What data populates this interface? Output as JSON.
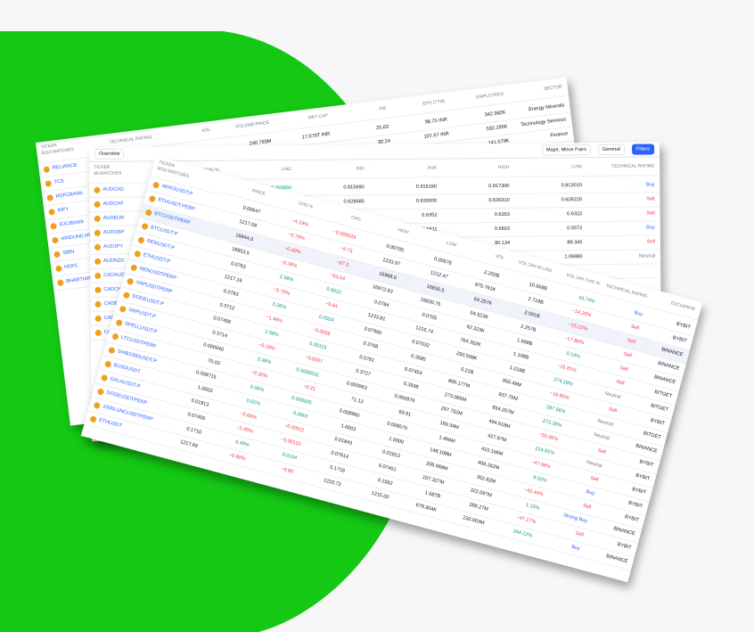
{
  "stock_table": {
    "header": "TICKER",
    "matches": "5010 MATCHES",
    "columns": [
      "TECHNICAL RATING",
      "VOL",
      "VOLUME*PRICE",
      "MKT CAP",
      "P/E",
      "EPS (TTM)",
      "EMPLOYEES",
      "SECTOR"
    ],
    "rows": [
      {
        "ticker": "RELIANCE",
        "cells": [
          null,
          "95.382K",
          "240.793M",
          "17.079T INR",
          "25.63",
          "98.75 INR",
          "342.982K",
          "Energy Minerals"
        ]
      },
      {
        "ticker": "TCS",
        "cells": [
          null,
          "60.181K",
          null,
          "11.913T INR",
          "30.24",
          "107.67 INR",
          "592.195K",
          "Technology Services"
        ]
      },
      {
        "ticker": "HDFCBANK",
        "cells": [
          null,
          null,
          null,
          null,
          "21.76",
          "75.16 INR",
          "141.579K",
          "Finance"
        ]
      },
      {
        "ticker": "INFY",
        "cells": [
          null,
          null,
          null,
          null,
          null,
          null,
          "339.485K",
          "Technology Services"
        ]
      },
      {
        "ticker": "ICICIBANK",
        "cells": [
          null,
          null,
          null,
          null,
          null,
          null,
          null,
          null
        ]
      },
      {
        "ticker": "HINDUNILVR",
        "cells": [
          null,
          null,
          null,
          null,
          null,
          null,
          null,
          null
        ]
      },
      {
        "ticker": "SBIN",
        "cells": [
          null,
          null,
          null,
          null,
          null,
          null,
          null,
          null
        ]
      },
      {
        "ticker": "HDFC",
        "cells": [
          null,
          null,
          null,
          null,
          null,
          null,
          null,
          null
        ]
      },
      {
        "ticker": "BHARTIARTL",
        "cells": [
          null,
          null,
          null,
          null,
          null,
          null,
          null,
          null
        ]
      }
    ]
  },
  "forex_table": {
    "toolbar": {
      "view": "Overview",
      "pairs": "Major, Minor Pairs",
      "group": "General",
      "filters": "Filters"
    },
    "header": "TICKER",
    "matches": "49 MATCHES",
    "columns": [
      "CHG %",
      "CHG",
      "BID",
      "ASK",
      "HIGH",
      "LOW",
      "TECHNICAL RATING"
    ],
    "rows": [
      {
        "ticker": "AUDCAD",
        "cells": [
          null,
          "0.003950",
          "0.915690",
          "0.916160",
          "0.917300",
          "0.913010",
          "Buy"
        ]
      },
      {
        "ticker": "AUDCHF",
        "cells": [
          null,
          null,
          "0.628685",
          "0.630000",
          "0.630310",
          "0.626220",
          "Sell"
        ]
      },
      {
        "ticker": "AUDEUR",
        "cells": [
          null,
          null,
          "0.6350",
          "0.6352",
          "0.6353",
          "0.6322",
          "Sell"
        ]
      },
      {
        "ticker": "AUDGBP",
        "cells": [
          null,
          null,
          null,
          "0.5611",
          "0.5603",
          "0.5572",
          "Buy"
        ]
      },
      {
        "ticker": "AUDJPY",
        "cells": [
          null,
          null,
          null,
          null,
          "90.134",
          "89.345",
          "Sell"
        ]
      },
      {
        "ticker": "AUDNZD",
        "cells": [
          null,
          null,
          null,
          null,
          null,
          "1.06980",
          "Neutral"
        ]
      },
      {
        "ticker": "CADAUD",
        "cells": [
          null,
          null,
          null,
          null,
          null,
          null,
          null
        ]
      },
      {
        "ticker": "CADCHF",
        "cells": [
          null,
          null,
          null,
          null,
          null,
          null,
          null
        ]
      },
      {
        "ticker": "CADEUR",
        "cells": [
          null,
          null,
          null,
          null,
          null,
          null,
          null
        ]
      },
      {
        "ticker": "CADGBP",
        "cells": [
          null,
          null,
          null,
          null,
          null,
          null,
          null
        ]
      },
      {
        "ticker": "CADJPY",
        "cells": [
          null,
          null,
          null,
          null,
          null,
          null,
          null
        ]
      }
    ]
  },
  "crypto_table": {
    "header": "TICKER",
    "matches": "5010 MATCHES",
    "columns": [
      "PRICE",
      "CHG %",
      "CHG",
      "HIGH",
      "LOW",
      "VOL",
      "VOL 24H IN USD",
      "VOL 24H CHG %",
      "TECHNICAL RATING",
      "EXCHANGE"
    ],
    "rows": [
      {
        "ticker": "AKROUSDT.P",
        "cells": [
          "0.00647",
          "−4.19%",
          "−0.000016",
          "0.00705",
          "0.00578",
          "2.202B",
          "10.568B",
          "43.74%",
          "Buy",
          "BYBIT"
        ]
      },
      {
        "ticker": "ETHUSDT.PERP",
        "cells": [
          "1217.08",
          "−0.79%",
          "−9.73",
          "1233.97",
          "1212.47",
          "875.761K",
          "2.718B",
          "−14.20%",
          "Sell",
          "BYBIT"
        ]
      },
      {
        "ticker": "BTCUSDTPERP",
        "cells": [
          "16844.0",
          "−0.40%",
          "−67.3",
          "16968.0",
          "16830.5",
          "64.257K",
          "2.591B",
          "−15.23%",
          "Sell",
          "BINANCE"
        ]
      },
      {
        "ticker": "BTCUSDT.P",
        "cells": [
          "16853.5",
          "−0.38%",
          "−63.64",
          "16972.83",
          "16830.75",
          "54.523K",
          "2.257B",
          "−17.80%",
          "Sell",
          "BINANCE"
        ]
      },
      {
        "ticker": "RENUSDT.P",
        "cells": [
          "0.0763",
          "2.98%",
          "0.0022",
          "0.0784",
          "0.0705",
          "42.323K",
          "1.698B",
          "0.14%",
          "Sell",
          "BINANCE"
        ]
      },
      {
        "ticker": "ETHUSDT.P",
        "cells": [
          "1217.16",
          "−0.79%",
          "−9.64",
          "1233.81",
          "1215.74",
          "764.352K",
          "1.108B",
          "−15.81%",
          "Sell",
          "BITGET"
        ]
      },
      {
        "ticker": "RENUSDTPERP",
        "cells": [
          "0.0763",
          "3.26%",
          "0.0024",
          "0.07900",
          "0.07032",
          "250.508K",
          "1.018B",
          "274.18%",
          "Neutral",
          "BITGET"
        ]
      },
      {
        "ticker": "XRPUSDTPERP",
        "cells": [
          "0.3712",
          "−1.48%",
          "−0.0056",
          "0.3768",
          "0.3585",
          "5.21B",
          "950.49M",
          "−18.85%",
          "Sell",
          "BYBIT"
        ]
      },
      {
        "ticker": "DOGEUSDT.P",
        "cells": [
          "0.07456",
          "1.56%",
          "0.00115",
          "0.0761",
          "0.07454",
          "896.177M",
          "837.75M",
          "287.56%",
          "Neutral",
          "BITGET"
        ]
      },
      {
        "ticker": "XRPUSDT.P",
        "cells": [
          "0.3714",
          "−0.18%",
          "−0.0007",
          "0.3727",
          "0.3598",
          "273.085M",
          "654.257M",
          "273.38%",
          "Neutral",
          "BINANCE"
        ]
      },
      {
        "ticker": "SPELLUSDT.P",
        "cells": [
          "0.000940",
          "5.98%",
          "0.0000531",
          "0.000953",
          "0.000879",
          "297.752M",
          "494.618M",
          "−55.06%",
          "Sell",
          "BYBIT"
        ]
      },
      {
        "ticker": "LTCUSDTPERP",
        "cells": [
          "70.03",
          "−0.30%",
          "−0.21",
          "71.13",
          "69.91",
          "169.34M",
          "427.87M",
          "214.81%",
          "Neutral",
          "BYBIT"
        ]
      },
      {
        "ticker": "SHIB1000USDT.P",
        "cells": [
          "0.008715",
          "0.06%",
          "0.000005",
          "0.008960",
          "0.008570",
          "1.466M",
          "415.196M",
          "−47.66%",
          "Sell",
          "BYBIT"
        ]
      },
      {
        "ticker": "BUSDUSDT",
        "cells": [
          "1.0003",
          "0.01%",
          "0.0001",
          "1.0003",
          "1.0000",
          "148.108M",
          "408.162M",
          "9.52%",
          "Buy",
          "BYBIT"
        ]
      },
      {
        "ticker": "GALAUSDT.P",
        "cells": [
          "0.01813",
          "−0.60%",
          "−0.00011",
          "0.01843",
          "0.01813",
          "206.968M",
          "352.82M",
          "−42.44%",
          "Sell",
          "BYBIT"
        ]
      },
      {
        "ticker": "DOGEUSDTPERP",
        "cells": [
          "0.07455",
          "−1.45%",
          "−0.00110",
          "0.07614",
          "0.07451",
          "107.327M",
          "322.097M",
          "1.10%",
          "Strong Buy",
          "BINANCE"
        ]
      },
      {
        "ticker": "1000LUNCUSDTPERP",
        "cells": [
          "0.1710",
          "6.49%",
          "0.0104",
          "0.1718",
          "0.1562",
          "1.587B",
          "288.27M",
          "−47.17%",
          "Sell",
          "BYBIT"
        ]
      },
      {
        "ticker": "ETHUSDT",
        "cells": [
          "1217.69",
          "−0.80%",
          "−9.80",
          "1233.72",
          "1215.00",
          "678.904K",
          "230.003M",
          "344.12%",
          "Buy",
          "BINANCE"
        ]
      }
    ]
  }
}
